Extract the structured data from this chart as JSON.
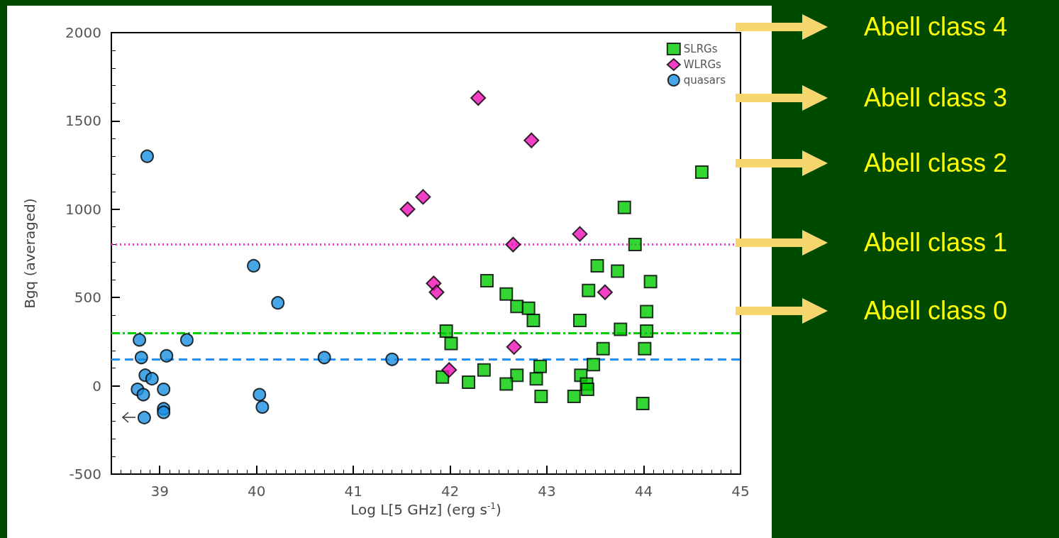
{
  "chart_data": {
    "type": "scatter",
    "xlabel": "Log L[5 GHz] (erg s$^{-1}$)",
    "ylabel": "Bgq (averaged)",
    "xlim": [
      38.5,
      45
    ],
    "xticks": [
      39,
      40,
      41,
      42,
      43,
      44,
      45
    ],
    "ylim": [
      -500,
      2000
    ],
    "yticks": [
      -500,
      0,
      500,
      1000,
      1500,
      2000
    ],
    "grid": false,
    "legend": "top right",
    "series": [
      {
        "name": "SLRGs",
        "color": "#00cc00",
        "marker": "square",
        "x": [
          44.6,
          43.8,
          43.91,
          43.52,
          43.73,
          44.07,
          42.38,
          42.58,
          43.43,
          42.69,
          42.81,
          42.86,
          43.34,
          44.03,
          41.96,
          43.76,
          44.03,
          42.01,
          43.58,
          44.01,
          42.93,
          43.48,
          41.92,
          42.35,
          42.69,
          43.35,
          42.89,
          42.19,
          42.58,
          43.41,
          43.42,
          42.94,
          43.28,
          43.99
        ],
        "values": [
          1210,
          1010,
          800,
          680,
          650,
          590,
          595,
          520,
          540,
          450,
          440,
          370,
          370,
          420,
          310,
          320,
          310,
          240,
          210,
          210,
          110,
          120,
          50,
          90,
          60,
          60,
          40,
          20,
          10,
          10,
          -20,
          -60,
          -60,
          -100
        ]
      },
      {
        "name": "WLRGs",
        "color": "#ee10b8",
        "marker": "diamond",
        "x": [
          42.29,
          42.84,
          41.56,
          41.72,
          42.65,
          43.34,
          41.83,
          41.86,
          43.6,
          42.66,
          41.99
        ],
        "values": [
          1630,
          1390,
          1000,
          1070,
          800,
          860,
          580,
          530,
          530,
          220,
          90
        ]
      },
      {
        "name": "quasars",
        "color": "#1a8fe0",
        "marker": "circle",
        "x": [
          38.87,
          39.97,
          40.22,
          38.79,
          39.28,
          38.81,
          39.07,
          40.7,
          41.4,
          38.85,
          38.92,
          38.77,
          38.83,
          39.04,
          40.03,
          40.06,
          39.04,
          39.04,
          38.84
        ],
        "values": [
          1300,
          680,
          470,
          260,
          260,
          160,
          170,
          160,
          150,
          60,
          40,
          -20,
          -50,
          -20,
          -50,
          -120,
          -130,
          -150,
          -180
        ]
      }
    ],
    "ref_lines": [
      {
        "axis": "y",
        "value": 300,
        "color": "#00cc00",
        "line_style": "dashdot"
      },
      {
        "axis": "y",
        "value": 800,
        "color": "#ff33cc",
        "line_style": "dotted"
      },
      {
        "axis": "y",
        "value": 150,
        "color": "#1e90ff",
        "line_style": "dashed"
      }
    ],
    "annotations": [
      "Abell class 4",
      "Abell class 3",
      "Abell class 2",
      "Abell class 1",
      "Abell class 0"
    ]
  }
}
